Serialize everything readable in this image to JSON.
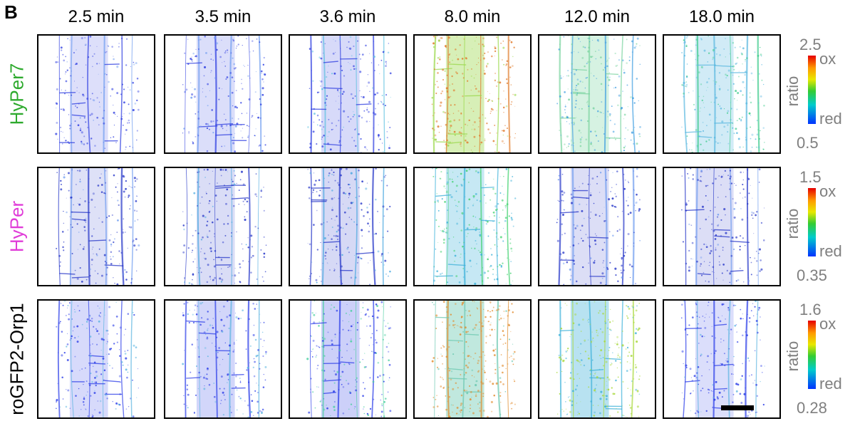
{
  "panel_label": "B",
  "time_points": [
    "2.5 min",
    "3.5 min",
    "3.6 min",
    "8.0 min",
    "12.0 min",
    "18.0 min"
  ],
  "rows": [
    {
      "label": "HyPer7",
      "label_color": "#2eaa2e",
      "scale_max": "2.5",
      "scale_min": "0.5",
      "panel_tints": [
        {
          "tone": "#2b3be0",
          "accent": "#6f9cf0",
          "level": 0.12
        },
        {
          "tone": "#2b3be0",
          "accent": "#6f9cf0",
          "level": 0.15
        },
        {
          "tone": "#2b3be0",
          "accent": "#5cc0e0",
          "level": 0.2
        },
        {
          "tone": "#9ad84a",
          "accent": "#e07a2a",
          "level": 0.8
        },
        {
          "tone": "#7ad4a0",
          "accent": "#3a9be0",
          "level": 0.55
        },
        {
          "tone": "#5ab8e0",
          "accent": "#3acb8a",
          "level": 0.45
        }
      ]
    },
    {
      "label": "HyPer",
      "label_color": "#e03cd8",
      "scale_max": "1.5",
      "scale_min": "0.35",
      "panel_tints": [
        {
          "tone": "#2434c8",
          "accent": "#6f9cf0",
          "level": 0.1
        },
        {
          "tone": "#2434c8",
          "accent": "#4aa8e0",
          "level": 0.15
        },
        {
          "tone": "#2434c8",
          "accent": "#4aa8e0",
          "level": 0.2
        },
        {
          "tone": "#3ab0d8",
          "accent": "#3ad06a",
          "level": 0.5
        },
        {
          "tone": "#2434c8",
          "accent": "#6f9cf0",
          "level": 0.12
        },
        {
          "tone": "#2434c8",
          "accent": "#6f9cf0",
          "level": 0.12
        }
      ]
    },
    {
      "label": "roGFP2-Orp1",
      "label_color": "#000000",
      "scale_max": "1.6",
      "scale_min": "0.28",
      "panel_tints": [
        {
          "tone": "#2a3ce8",
          "accent": "#5ab4e0",
          "level": 0.2
        },
        {
          "tone": "#2a3ce8",
          "accent": "#5ab4e0",
          "level": 0.25
        },
        {
          "tone": "#2a3ce8",
          "accent": "#4acfa0",
          "level": 0.35
        },
        {
          "tone": "#6ac8b0",
          "accent": "#e08a2a",
          "level": 0.85
        },
        {
          "tone": "#3ab0d8",
          "accent": "#a8d83a",
          "level": 0.7
        },
        {
          "tone": "#2a3ce8",
          "accent": "#5ab4e0",
          "level": 0.15
        }
      ]
    }
  ],
  "colorbar": {
    "top_label": "ox",
    "bottom_label": "red",
    "axis_label": "ratio"
  }
}
